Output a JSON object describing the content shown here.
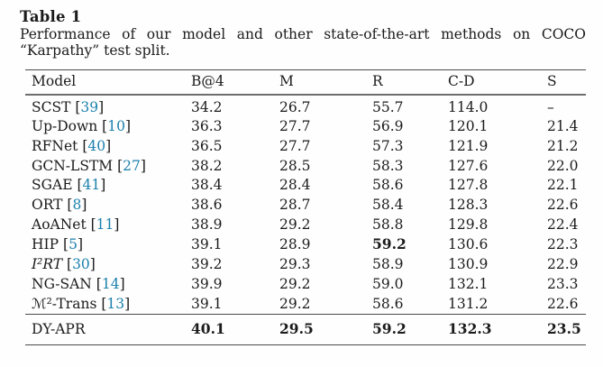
{
  "table": {
    "label": "Table 1",
    "caption_line1": "Performance of our model and other state-of-the-art methods on COCO",
    "caption_line2": "“Karpathy” test split.",
    "accent_color": "#1c80ad",
    "citation_bracket_open": "[",
    "citation_bracket_close": "]",
    "columns": [
      "Model",
      "B@4",
      "M",
      "R",
      "C-D",
      "S"
    ],
    "rows": [
      {
        "model": "SCST",
        "italic": false,
        "cite": "39",
        "values": [
          "34.2",
          "26.7",
          "55.7",
          "114.0",
          "–"
        ],
        "bold_cols": []
      },
      {
        "model": "Up-Down",
        "italic": false,
        "cite": "10",
        "values": [
          "36.3",
          "27.7",
          "56.9",
          "120.1",
          "21.4"
        ],
        "bold_cols": []
      },
      {
        "model": "RFNet",
        "italic": false,
        "cite": "40",
        "values": [
          "36.5",
          "27.7",
          "57.3",
          "121.9",
          "21.2"
        ],
        "bold_cols": []
      },
      {
        "model": "GCN-LSTM",
        "italic": false,
        "cite": "27",
        "values": [
          "38.2",
          "28.5",
          "58.3",
          "127.6",
          "22.0"
        ],
        "bold_cols": []
      },
      {
        "model": "SGAE",
        "italic": false,
        "cite": "41",
        "values": [
          "38.4",
          "28.4",
          "58.6",
          "127.8",
          "22.1"
        ],
        "bold_cols": []
      },
      {
        "model": "ORT",
        "italic": false,
        "cite": "8",
        "values": [
          "38.6",
          "28.7",
          "58.4",
          "128.3",
          "22.6"
        ],
        "bold_cols": []
      },
      {
        "model": "AoANet",
        "italic": false,
        "cite": "11",
        "values": [
          "38.9",
          "29.2",
          "58.8",
          "129.8",
          "22.4"
        ],
        "bold_cols": []
      },
      {
        "model": "HIP",
        "italic": false,
        "cite": "5",
        "values": [
          "39.1",
          "28.9",
          "59.2",
          "130.6",
          "22.3"
        ],
        "bold_cols": [
          2
        ]
      },
      {
        "model": "I²RT",
        "italic": true,
        "cite": "30",
        "values": [
          "39.2",
          "29.3",
          "58.9",
          "130.9",
          "22.9"
        ],
        "bold_cols": []
      },
      {
        "model": "NG-SAN",
        "italic": false,
        "cite": "14",
        "values": [
          "39.9",
          "29.2",
          "59.0",
          "132.1",
          "23.3"
        ],
        "bold_cols": []
      },
      {
        "model": "ℳ²-Trans",
        "italic": false,
        "cite": "13",
        "values": [
          "39.1",
          "29.2",
          "58.6",
          "131.2",
          "22.6"
        ],
        "bold_cols": []
      }
    ],
    "footer_row": {
      "model": "DY-APR",
      "values": [
        "40.1",
        "29.5",
        "59.2",
        "132.3",
        "23.5"
      ],
      "bold_cols": [
        0,
        1,
        2,
        3,
        4
      ]
    }
  }
}
